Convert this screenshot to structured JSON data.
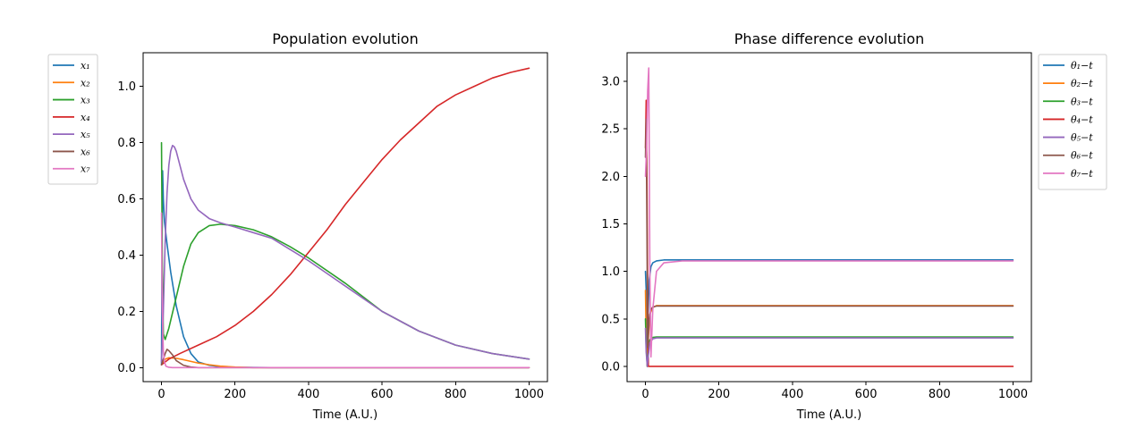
{
  "chart_data": [
    {
      "type": "line",
      "title": "Population evolution",
      "xlabel": "Time (A.U.)",
      "ylabel": "",
      "xlim": [
        -50,
        1050
      ],
      "ylim": [
        -0.05,
        1.12
      ],
      "xticks": [
        0,
        200,
        400,
        600,
        800,
        1000
      ],
      "yticks": [
        0.0,
        0.2,
        0.4,
        0.6,
        0.8,
        1.0
      ],
      "xtick_labels": [
        "0",
        "200",
        "400",
        "600",
        "800",
        "1000"
      ],
      "ytick_labels": [
        "0.0",
        "0.2",
        "0.4",
        "0.6",
        "0.8",
        "1.0"
      ],
      "legend_position": "outside-left",
      "series": [
        {
          "name": "x₁",
          "color": "#1f77b4",
          "x": [
            0,
            1,
            3,
            5,
            8,
            15,
            25,
            40,
            60,
            80,
            100,
            130,
            160,
            200,
            300,
            1000
          ],
          "y": [
            0.01,
            0.3,
            0.7,
            0.6,
            0.52,
            0.44,
            0.34,
            0.22,
            0.11,
            0.05,
            0.02,
            0.008,
            0.003,
            0.001,
            0,
            0
          ]
        },
        {
          "name": "x₂",
          "color": "#ff7f0e",
          "x": [
            0,
            10,
            20,
            40,
            60,
            80,
            100,
            130,
            160,
            200,
            250,
            1000
          ],
          "y": [
            0.01,
            0.03,
            0.035,
            0.033,
            0.028,
            0.022,
            0.016,
            0.01,
            0.005,
            0.002,
            0,
            0
          ]
        },
        {
          "name": "x₃",
          "color": "#2ca02c",
          "x": [
            0,
            2,
            5,
            10,
            20,
            40,
            60,
            80,
            100,
            130,
            160,
            200,
            250,
            300,
            350,
            400,
            500,
            600,
            700,
            800,
            900,
            1000
          ],
          "y": [
            0.8,
            0.4,
            0.12,
            0.1,
            0.14,
            0.25,
            0.36,
            0.44,
            0.48,
            0.505,
            0.51,
            0.505,
            0.49,
            0.465,
            0.43,
            0.39,
            0.3,
            0.2,
            0.13,
            0.08,
            0.05,
            0.03
          ]
        },
        {
          "name": "x₄",
          "color": "#d62728",
          "x": [
            0,
            20,
            50,
            100,
            150,
            200,
            250,
            300,
            350,
            400,
            450,
            500,
            550,
            600,
            650,
            700,
            750,
            800,
            850,
            900,
            950,
            1000
          ],
          "y": [
            0.01,
            0.03,
            0.05,
            0.08,
            0.11,
            0.15,
            0.2,
            0.26,
            0.33,
            0.41,
            0.49,
            0.58,
            0.66,
            0.74,
            0.81,
            0.87,
            0.93,
            0.97,
            1.0,
            1.03,
            1.05,
            1.065
          ]
        },
        {
          "name": "x₅",
          "color": "#9467bd",
          "x": [
            0,
            5,
            10,
            15,
            20,
            25,
            30,
            35,
            40,
            50,
            60,
            80,
            100,
            130,
            160,
            200,
            250,
            300,
            350,
            400,
            500,
            600,
            700,
            800,
            900,
            1000
          ],
          "y": [
            0.02,
            0.2,
            0.45,
            0.62,
            0.72,
            0.77,
            0.79,
            0.785,
            0.77,
            0.72,
            0.67,
            0.6,
            0.56,
            0.53,
            0.515,
            0.5,
            0.48,
            0.46,
            0.42,
            0.38,
            0.29,
            0.2,
            0.13,
            0.08,
            0.05,
            0.03
          ]
        },
        {
          "name": "x₆",
          "color": "#8c564b",
          "x": [
            0,
            5,
            10,
            15,
            20,
            30,
            40,
            60,
            80,
            100,
            1000
          ],
          "y": [
            0.01,
            0.03,
            0.05,
            0.065,
            0.06,
            0.045,
            0.025,
            0.008,
            0.002,
            0,
            0
          ]
        },
        {
          "name": "x₇",
          "color": "#e377c2",
          "x": [
            0,
            2,
            5,
            8,
            12,
            20,
            30,
            50,
            100,
            1000
          ],
          "y": [
            0.55,
            0.2,
            0.06,
            0.02,
            0.005,
            0.001,
            0,
            0,
            0,
            0
          ]
        }
      ]
    },
    {
      "type": "line",
      "title": "Phase difference evolution",
      "xlabel": "Time (A.U.)",
      "ylabel": "",
      "xlim": [
        -50,
        1050
      ],
      "ylim": [
        -0.16,
        3.3
      ],
      "xticks": [
        0,
        200,
        400,
        600,
        800,
        1000
      ],
      "yticks": [
        0.0,
        0.5,
        1.0,
        1.5,
        2.0,
        2.5,
        3.0
      ],
      "xtick_labels": [
        "0",
        "200",
        "400",
        "600",
        "800",
        "1000"
      ],
      "ytick_labels": [
        "0.0",
        "0.5",
        "1.0",
        "1.5",
        "2.0",
        "2.5",
        "3.0"
      ],
      "legend_position": "outside-right",
      "series": [
        {
          "name": "θ₁−t",
          "color": "#1f77b4",
          "x": [
            0,
            2,
            4,
            6,
            10,
            15,
            20,
            30,
            50,
            100,
            1000
          ],
          "y": [
            1.0,
            0.8,
            0.2,
            0.4,
            0.9,
            1.05,
            1.09,
            1.11,
            1.12,
            1.12,
            1.12
          ]
        },
        {
          "name": "θ₂−t",
          "color": "#ff7f0e",
          "x": [
            0,
            2,
            5,
            8,
            12,
            20,
            30,
            50,
            1000
          ],
          "y": [
            0.8,
            0.3,
            0.0,
            0.3,
            0.55,
            0.62,
            0.64,
            0.64,
            0.64
          ]
        },
        {
          "name": "θ₃−t",
          "color": "#2ca02c",
          "x": [
            0,
            2,
            5,
            8,
            12,
            20,
            30,
            50,
            1000
          ],
          "y": [
            0.5,
            0.2,
            0.0,
            0.15,
            0.28,
            0.305,
            0.31,
            0.31,
            0.31
          ]
        },
        {
          "name": "θ₄−t",
          "color": "#d62728",
          "x": [
            0,
            2,
            4,
            6,
            8,
            10,
            15,
            20,
            30,
            1000
          ],
          "y": [
            2.3,
            2.8,
            2.0,
            0.8,
            0.0,
            0.0,
            0.0,
            0.0,
            0.0,
            0.0
          ]
        },
        {
          "name": "θ₅−t",
          "color": "#9467bd",
          "x": [
            0,
            2,
            5,
            8,
            12,
            20,
            30,
            50,
            1000
          ],
          "y": [
            0.4,
            0.15,
            0.0,
            0.12,
            0.25,
            0.29,
            0.3,
            0.3,
            0.3
          ]
        },
        {
          "name": "θ₆−t",
          "color": "#8c564b",
          "x": [
            0,
            2,
            4,
            6,
            10,
            15,
            20,
            30,
            50,
            1000
          ],
          "y": [
            2.2,
            2.6,
            1.5,
            0.2,
            0.5,
            0.6,
            0.625,
            0.635,
            0.635,
            0.635
          ]
        },
        {
          "name": "θ₇−t",
          "color": "#e377c2",
          "x": [
            0,
            3,
            6,
            9,
            10,
            12,
            15,
            20,
            30,
            50,
            100,
            1000
          ],
          "y": [
            2.0,
            2.3,
            2.9,
            3.14,
            2.5,
            1.0,
            0.1,
            0.6,
            1.0,
            1.09,
            1.11,
            1.11
          ]
        }
      ]
    }
  ]
}
